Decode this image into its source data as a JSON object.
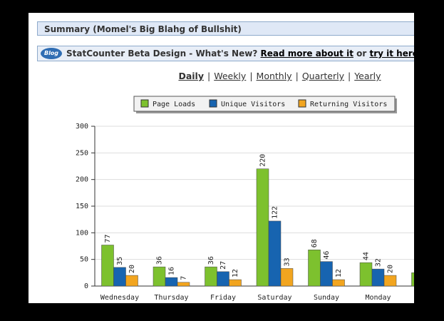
{
  "header": {
    "summary": "Summary (Momel's Big Blahg of Bullshit)",
    "blog_badge": "Blog",
    "news": "StatCounter Beta Design - What's New?",
    "read_more": "Read more about it",
    "or": "or",
    "try_it": "try it here."
  },
  "periods": {
    "items": [
      "Daily",
      "Weekly",
      "Monthly",
      "Quarterly",
      "Yearly"
    ],
    "separator": "|"
  },
  "chart_data": {
    "type": "bar",
    "categories": [
      "Wednesday",
      "Thursday",
      "Friday",
      "Saturday",
      "Sunday",
      "Monday",
      null
    ],
    "series": [
      {
        "name": "Page Loads",
        "color": "#7dc12e",
        "values": [
          77,
          36,
          36,
          220,
          68,
          44,
          25
        ]
      },
      {
        "name": "Unique Visitors",
        "color": "#1764b0",
        "values": [
          35,
          16,
          27,
          122,
          46,
          32,
          null
        ]
      },
      {
        "name": "Returning Visitors",
        "color": "#f2a51f",
        "values": [
          20,
          7,
          12,
          33,
          12,
          20,
          null
        ]
      }
    ],
    "ylim": [
      0,
      300
    ],
    "yticks": [
      0,
      50,
      100,
      150,
      200,
      250,
      300
    ],
    "grid": true,
    "legend": "top"
  }
}
